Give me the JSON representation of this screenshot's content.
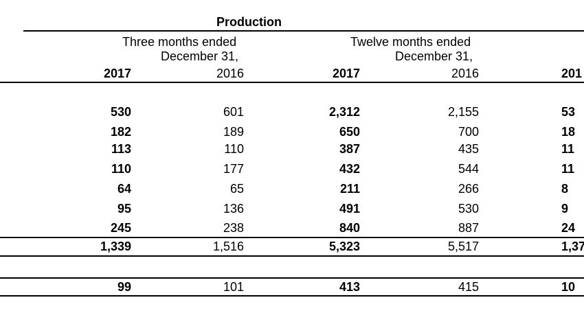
{
  "table": {
    "section_title": "Production",
    "group_headers": [
      {
        "line1": "Three months ended",
        "line2": "December 31,"
      },
      {
        "line1": "Twelve months ended",
        "line2": "December 31,"
      }
    ],
    "years": [
      "2017",
      "2016",
      "2017",
      "2016",
      "201"
    ],
    "rows": [
      [
        "530",
        "601",
        "2,312",
        "2,155",
        "53"
      ],
      [
        "182",
        "189",
        "650",
        "700",
        "18"
      ],
      [
        "113",
        "110",
        "387",
        "435",
        "11"
      ],
      [
        "110",
        "177",
        "432",
        "544",
        "11"
      ],
      [
        "64",
        "65",
        "211",
        "266",
        "8"
      ],
      [
        "95",
        "136",
        "491",
        "530",
        "9"
      ],
      [
        "245",
        "238",
        "840",
        "887",
        "24"
      ]
    ],
    "total_row": [
      "1,339",
      "1,516",
      "5,323",
      "5,517",
      "1,37"
    ],
    "bottom_row": [
      "99",
      "101",
      "413",
      "415",
      "10"
    ]
  }
}
